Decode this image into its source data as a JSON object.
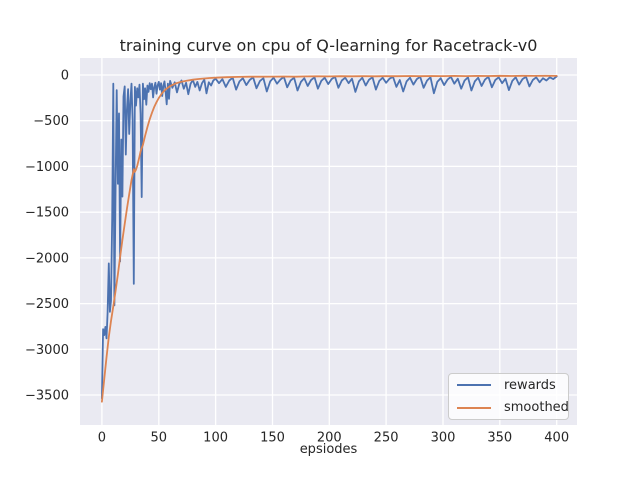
{
  "chart_data": {
    "type": "line",
    "title": "training curve on cpu of Q-learning for Racetrack-v0",
    "xlabel": "epsiodes",
    "ylabel": "",
    "grid": true,
    "legend_position": "lower right",
    "xlim": [
      -19.3,
      417.9
    ],
    "ylim": [
      -3828,
      186
    ],
    "x_tick_values": [
      0,
      50,
      100,
      150,
      200,
      250,
      300,
      350,
      400
    ],
    "x_tick_labels": [
      "0",
      "50",
      "100",
      "150",
      "200",
      "250",
      "300",
      "350",
      "400"
    ],
    "y_tick_values": [
      0,
      -500,
      -1000,
      -1500,
      -2000,
      -2500,
      -3000,
      -3500
    ],
    "y_tick_labels": [
      "0",
      "−500",
      "−1000",
      "−1500",
      "−2000",
      "−2500",
      "−3000",
      "−3500"
    ],
    "colors": {
      "rewards": "#4C72B0",
      "smoothed": "#DD8452",
      "axes_bg": "#EAEAF2",
      "grid": "#FFFFFF",
      "text": "#262626",
      "figure_bg": "#FFFFFF"
    },
    "series": [
      {
        "name": "rewards",
        "color_key": "rewards",
        "points": [
          [
            0,
            -3537
          ],
          [
            1,
            -2780
          ],
          [
            2,
            -2845
          ],
          [
            3,
            -2755
          ],
          [
            4,
            -2880
          ],
          [
            5,
            -2600
          ],
          [
            6,
            -2060
          ],
          [
            7,
            -2590
          ],
          [
            8,
            -2470
          ],
          [
            9,
            -1560
          ],
          [
            10,
            -95
          ],
          [
            11,
            -2520
          ],
          [
            12,
            -1215
          ],
          [
            13,
            -165
          ],
          [
            14,
            -1190
          ],
          [
            15,
            -420
          ],
          [
            16,
            -2040
          ],
          [
            17,
            -705
          ],
          [
            18,
            -1330
          ],
          [
            19,
            -235
          ],
          [
            20,
            -125
          ],
          [
            21,
            -870
          ],
          [
            22,
            -385
          ],
          [
            23,
            -155
          ],
          [
            24,
            -645
          ],
          [
            25,
            -285
          ],
          [
            26,
            -95
          ],
          [
            27,
            -490
          ],
          [
            28,
            -2285
          ],
          [
            29,
            -130
          ],
          [
            30,
            -335
          ],
          [
            31,
            -145
          ],
          [
            32,
            -245
          ],
          [
            33,
            -105
          ],
          [
            34,
            -425
          ],
          [
            35,
            -1335
          ],
          [
            36,
            -95
          ],
          [
            37,
            -265
          ],
          [
            38,
            -145
          ],
          [
            39,
            -325
          ],
          [
            40,
            -115
          ],
          [
            41,
            -185
          ],
          [
            42,
            -90
          ],
          [
            43,
            -155
          ],
          [
            44,
            -95
          ],
          [
            45,
            -245
          ],
          [
            46,
            -135
          ],
          [
            47,
            -85
          ],
          [
            48,
            -205
          ],
          [
            49,
            -115
          ],
          [
            50,
            -75
          ],
          [
            51,
            -160
          ],
          [
            52,
            -90
          ],
          [
            53,
            -230
          ],
          [
            54,
            -120
          ],
          [
            55,
            -70
          ],
          [
            56,
            -180
          ],
          [
            57,
            -320
          ],
          [
            58,
            -95
          ],
          [
            59,
            -260
          ],
          [
            60,
            -65
          ],
          [
            62,
            -140
          ],
          [
            64,
            -80
          ],
          [
            66,
            -190
          ],
          [
            68,
            -100
          ],
          [
            70,
            -60
          ],
          [
            72,
            -150
          ],
          [
            74,
            -85
          ],
          [
            76,
            -210
          ],
          [
            78,
            -95
          ],
          [
            80,
            -55
          ],
          [
            82,
            -130
          ],
          [
            84,
            -75
          ],
          [
            86,
            -170
          ],
          [
            88,
            -90
          ],
          [
            90,
            -50
          ],
          [
            92,
            -200
          ],
          [
            94,
            -80
          ],
          [
            96,
            -115
          ],
          [
            98,
            -60
          ],
          [
            100,
            -40
          ],
          [
            103,
            -90
          ],
          [
            106,
            -45
          ],
          [
            109,
            -130
          ],
          [
            112,
            -60
          ],
          [
            115,
            -30
          ],
          [
            118,
            -160
          ],
          [
            121,
            -70
          ],
          [
            124,
            -35
          ],
          [
            127,
            -110
          ],
          [
            130,
            -55
          ],
          [
            133,
            -25
          ],
          [
            136,
            -145
          ],
          [
            139,
            -65
          ],
          [
            142,
            -35
          ],
          [
            145,
            -180
          ],
          [
            148,
            -70
          ],
          [
            151,
            -30
          ],
          [
            154,
            -95
          ],
          [
            157,
            -50
          ],
          [
            160,
            -20
          ],
          [
            163,
            -135
          ],
          [
            166,
            -60
          ],
          [
            169,
            -30
          ],
          [
            172,
            -170
          ],
          [
            175,
            -75
          ],
          [
            178,
            -35
          ],
          [
            181,
            -120
          ],
          [
            184,
            -55
          ],
          [
            187,
            -25
          ],
          [
            190,
            -150
          ],
          [
            193,
            -65
          ],
          [
            196,
            -30
          ],
          [
            199,
            -100
          ],
          [
            202,
            -45
          ],
          [
            205,
            -20
          ],
          [
            208,
            -140
          ],
          [
            211,
            -60
          ],
          [
            214,
            -30
          ],
          [
            217,
            -90
          ],
          [
            220,
            -40
          ],
          [
            223,
            -185
          ],
          [
            226,
            -70
          ],
          [
            229,
            -30
          ],
          [
            232,
            -115
          ],
          [
            235,
            -50
          ],
          [
            238,
            -25
          ],
          [
            241,
            -160
          ],
          [
            244,
            -65
          ],
          [
            247,
            -30
          ],
          [
            250,
            -85
          ],
          [
            253,
            -40
          ],
          [
            256,
            -20
          ],
          [
            259,
            -130
          ],
          [
            262,
            -55
          ],
          [
            265,
            -180
          ],
          [
            268,
            -70
          ],
          [
            271,
            -30
          ],
          [
            274,
            -105
          ],
          [
            277,
            -45
          ],
          [
            280,
            -20
          ],
          [
            283,
            -140
          ],
          [
            286,
            -60
          ],
          [
            289,
            -25
          ],
          [
            292,
            -200
          ],
          [
            295,
            -75
          ],
          [
            298,
            -35
          ],
          [
            301,
            -110
          ],
          [
            304,
            -50
          ],
          [
            307,
            -20
          ],
          [
            310,
            -95
          ],
          [
            313,
            -40
          ],
          [
            316,
            -150
          ],
          [
            319,
            -60
          ],
          [
            322,
            -25
          ],
          [
            325,
            -170
          ],
          [
            328,
            -70
          ],
          [
            331,
            -30
          ],
          [
            334,
            -120
          ],
          [
            337,
            -50
          ],
          [
            340,
            -20
          ],
          [
            343,
            -135
          ],
          [
            346,
            -55
          ],
          [
            349,
            -25
          ],
          [
            352,
            -90
          ],
          [
            355,
            -40
          ],
          [
            358,
            -165
          ],
          [
            361,
            -65
          ],
          [
            364,
            -25
          ],
          [
            367,
            -105
          ],
          [
            370,
            -45
          ],
          [
            373,
            -20
          ],
          [
            376,
            -125
          ],
          [
            379,
            -55
          ],
          [
            382,
            -25
          ],
          [
            385,
            -80
          ],
          [
            388,
            -35
          ],
          [
            391,
            -60
          ],
          [
            394,
            -25
          ],
          [
            397,
            -45
          ],
          [
            400,
            -15
          ]
        ]
      },
      {
        "name": "smoothed",
        "color_key": "smoothed",
        "points": [
          [
            0,
            -3573
          ],
          [
            2,
            -3330
          ],
          [
            4,
            -3090
          ],
          [
            6,
            -2865
          ],
          [
            8,
            -2690
          ],
          [
            10,
            -2530
          ],
          [
            12,
            -2360
          ],
          [
            14,
            -2180
          ],
          [
            16,
            -1990
          ],
          [
            18,
            -1805
          ],
          [
            20,
            -1630
          ],
          [
            22,
            -1465
          ],
          [
            24,
            -1305
          ],
          [
            26,
            -1150
          ],
          [
            28,
            -1030
          ],
          [
            29,
            -1060
          ],
          [
            30,
            -1035
          ],
          [
            31,
            -995
          ],
          [
            32,
            -945
          ],
          [
            33,
            -890
          ],
          [
            34,
            -835
          ],
          [
            35,
            -800
          ],
          [
            36,
            -765
          ],
          [
            38,
            -665
          ],
          [
            40,
            -570
          ],
          [
            42,
            -485
          ],
          [
            44,
            -412
          ],
          [
            46,
            -350
          ],
          [
            48,
            -297
          ],
          [
            50,
            -252
          ],
          [
            53,
            -197
          ],
          [
            56,
            -157
          ],
          [
            60,
            -121
          ],
          [
            65,
            -92
          ],
          [
            70,
            -73
          ],
          [
            75,
            -61
          ],
          [
            80,
            -51
          ],
          [
            85,
            -44
          ],
          [
            90,
            -38
          ],
          [
            95,
            -33
          ],
          [
            100,
            -29
          ],
          [
            110,
            -24
          ],
          [
            120,
            -21
          ],
          [
            130,
            -19
          ],
          [
            140,
            -18
          ],
          [
            150,
            -17
          ],
          [
            160,
            -16
          ],
          [
            170,
            -18
          ],
          [
            180,
            -15
          ],
          [
            190,
            -14
          ],
          [
            200,
            -15
          ],
          [
            210,
            -13
          ],
          [
            220,
            -14
          ],
          [
            230,
            -12
          ],
          [
            240,
            -14
          ],
          [
            250,
            -12
          ],
          [
            260,
            -13
          ],
          [
            270,
            -11
          ],
          [
            280,
            -13
          ],
          [
            290,
            -11
          ],
          [
            300,
            -12
          ],
          [
            310,
            -10
          ],
          [
            320,
            -12
          ],
          [
            330,
            -10
          ],
          [
            340,
            -11
          ],
          [
            350,
            -9
          ],
          [
            360,
            -11
          ],
          [
            370,
            -9
          ],
          [
            380,
            -10
          ],
          [
            390,
            -9
          ],
          [
            400,
            -10
          ]
        ]
      }
    ]
  }
}
